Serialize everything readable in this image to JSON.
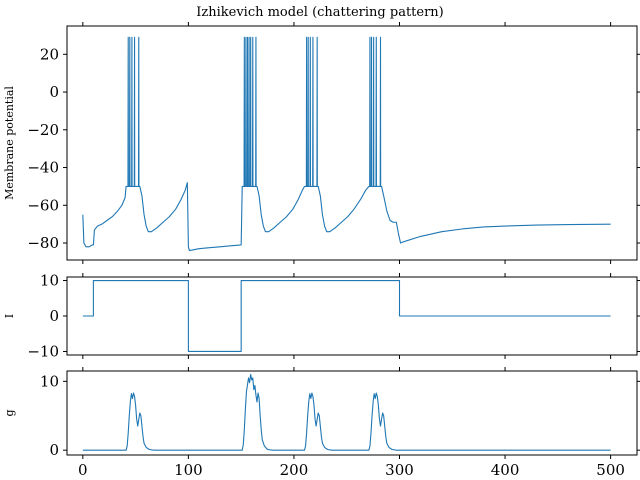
{
  "chart_data": {
    "type": "line",
    "title": "Izhikevich model (chattering pattern)",
    "x_ticks": [
      0,
      100,
      200,
      300,
      400,
      500
    ],
    "xlim": [
      -15,
      525
    ],
    "color": "#1f77b4",
    "panels": [
      {
        "id": "membrane",
        "ylabel": "Membrane potential",
        "ylim": [
          -89,
          35
        ],
        "y_ticks": [
          20,
          0,
          -20,
          -40,
          -60,
          -80
        ],
        "y_tick_labels": [
          "20",
          "0",
          "−20",
          "−40",
          "−60",
          "−80"
        ],
        "bursts": [
          {
            "start": 41,
            "spikes": [
              43,
              44.5,
              46.5,
              49,
              53
            ]
          },
          {
            "start": 151,
            "spikes": [
              153,
              154.5,
              156,
              157.5,
              159,
              161,
              164
            ]
          },
          {
            "start": 210,
            "spikes": [
              212,
              213.5,
              215.5,
              218,
              222
            ]
          },
          {
            "start": 271,
            "spikes": [
              272,
              273.5,
              275.5,
              278,
              282
            ]
          }
        ],
        "spike_peak": 29,
        "spike_trough": -50,
        "points": [
          [
            0,
            -65
          ],
          [
            1,
            -80
          ],
          [
            3,
            -82
          ],
          [
            6,
            -82
          ],
          [
            9,
            -81
          ],
          [
            10,
            -81
          ],
          [
            11,
            -73
          ],
          [
            14,
            -71
          ],
          [
            18,
            -70
          ],
          [
            23,
            -68
          ],
          [
            28,
            -66
          ],
          [
            33,
            -63
          ],
          [
            37,
            -60
          ],
          [
            40,
            -56
          ],
          [
            41,
            -50
          ],
          [
            54,
            -50
          ],
          [
            56,
            -55
          ],
          [
            58,
            -65
          ],
          [
            60,
            -71
          ],
          [
            62,
            -74
          ],
          [
            65,
            -74
          ],
          [
            70,
            -72
          ],
          [
            76,
            -69
          ],
          [
            82,
            -66
          ],
          [
            88,
            -62
          ],
          [
            93,
            -57
          ],
          [
            97,
            -52
          ],
          [
            99,
            -48
          ],
          [
            100,
            -82
          ],
          [
            101,
            -84
          ],
          [
            110,
            -83
          ],
          [
            120,
            -82.5
          ],
          [
            130,
            -82
          ],
          [
            140,
            -81.5
          ],
          [
            150,
            -81
          ],
          [
            151,
            -50
          ],
          [
            165,
            -50
          ],
          [
            167,
            -55
          ],
          [
            169,
            -65
          ],
          [
            171,
            -71
          ],
          [
            173,
            -74
          ],
          [
            176,
            -74
          ],
          [
            181,
            -72
          ],
          [
            187,
            -69
          ],
          [
            193,
            -66
          ],
          [
            199,
            -62
          ],
          [
            204,
            -57
          ],
          [
            208,
            -52
          ],
          [
            210,
            -50
          ],
          [
            223,
            -50
          ],
          [
            225,
            -55
          ],
          [
            227,
            -65
          ],
          [
            229,
            -71
          ],
          [
            231,
            -74
          ],
          [
            234,
            -74
          ],
          [
            239,
            -72
          ],
          [
            245,
            -69
          ],
          [
            251,
            -66
          ],
          [
            257,
            -62
          ],
          [
            263,
            -57
          ],
          [
            268,
            -52
          ],
          [
            271,
            -50
          ],
          [
            283,
            -50
          ],
          [
            285,
            -55
          ],
          [
            288,
            -63
          ],
          [
            291,
            -68
          ],
          [
            294,
            -69
          ],
          [
            297,
            -69
          ],
          [
            299,
            -75
          ],
          [
            301,
            -80
          ],
          [
            303,
            -79.5
          ],
          [
            320,
            -76.5
          ],
          [
            340,
            -74
          ],
          [
            360,
            -72.5
          ],
          [
            380,
            -71.5
          ],
          [
            400,
            -71
          ],
          [
            430,
            -70.5
          ],
          [
            460,
            -70.2
          ],
          [
            500,
            -70
          ]
        ]
      },
      {
        "id": "current",
        "ylabel": "I",
        "ylim": [
          -11,
          11
        ],
        "y_ticks": [
          10,
          0,
          -10
        ],
        "y_tick_labels": [
          "10",
          "0",
          "−10"
        ],
        "points": [
          [
            0,
            0
          ],
          [
            10,
            0
          ],
          [
            10,
            10
          ],
          [
            100,
            10
          ],
          [
            100,
            -10
          ],
          [
            150,
            -10
          ],
          [
            150,
            10
          ],
          [
            300,
            10
          ],
          [
            300,
            0
          ],
          [
            500,
            0
          ]
        ]
      },
      {
        "id": "conductance",
        "ylabel": "g",
        "ylim": [
          -0.7,
          11.5
        ],
        "y_ticks": [
          10,
          0
        ],
        "y_tick_labels": [
          "10",
          "0"
        ],
        "points": [
          [
            0,
            0
          ],
          [
            41,
            0
          ],
          [
            42,
            0.6
          ],
          [
            43,
            2.5
          ],
          [
            44,
            5
          ],
          [
            45,
            7
          ],
          [
            46,
            8.2
          ],
          [
            47,
            7.5
          ],
          [
            48,
            8.3
          ],
          [
            49,
            7.8
          ],
          [
            50,
            6.5
          ],
          [
            51,
            4.5
          ],
          [
            52,
            3.5
          ],
          [
            53,
            4.5
          ],
          [
            54,
            5.4
          ],
          [
            55,
            5
          ],
          [
            56,
            3.5
          ],
          [
            57,
            2
          ],
          [
            58,
            1
          ],
          [
            60,
            0.4
          ],
          [
            63,
            0.1
          ],
          [
            67,
            0
          ],
          [
            151,
            0
          ],
          [
            152,
            0.8
          ],
          [
            153,
            3
          ],
          [
            154,
            6
          ],
          [
            155,
            8.5
          ],
          [
            156,
            9.5
          ],
          [
            157,
            10.5
          ],
          [
            158,
            9.8
          ],
          [
            159,
            11
          ],
          [
            160,
            10.2
          ],
          [
            161,
            10.5
          ],
          [
            162,
            8.8
          ],
          [
            163,
            9.4
          ],
          [
            164,
            8
          ],
          [
            165,
            7
          ],
          [
            166,
            8.3
          ],
          [
            167,
            7.5
          ],
          [
            168,
            5
          ],
          [
            169,
            3
          ],
          [
            170,
            1.5
          ],
          [
            172,
            0.6
          ],
          [
            175,
            0.1
          ],
          [
            180,
            0
          ],
          [
            210,
            0
          ],
          [
            211,
            0.6
          ],
          [
            212,
            2.5
          ],
          [
            213,
            5
          ],
          [
            214,
            7
          ],
          [
            215,
            8.2
          ],
          [
            216,
            7.5
          ],
          [
            217,
            8.3
          ],
          [
            218,
            7.8
          ],
          [
            219,
            6.5
          ],
          [
            220,
            4.5
          ],
          [
            221,
            3.5
          ],
          [
            222,
            4.5
          ],
          [
            223,
            5.4
          ],
          [
            224,
            5
          ],
          [
            225,
            3.5
          ],
          [
            226,
            2
          ],
          [
            227,
            1
          ],
          [
            229,
            0.4
          ],
          [
            232,
            0.1
          ],
          [
            236,
            0
          ],
          [
            271,
            0
          ],
          [
            272,
            0.6
          ],
          [
            273,
            2.5
          ],
          [
            274,
            5
          ],
          [
            275,
            7
          ],
          [
            276,
            8.2
          ],
          [
            277,
            7.5
          ],
          [
            278,
            8.3
          ],
          [
            279,
            7.8
          ],
          [
            280,
            6.5
          ],
          [
            281,
            4.5
          ],
          [
            282,
            3.5
          ],
          [
            283,
            4.5
          ],
          [
            284,
            5.4
          ],
          [
            285,
            5
          ],
          [
            286,
            3.5
          ],
          [
            287,
            2
          ],
          [
            288,
            1
          ],
          [
            290,
            0.4
          ],
          [
            293,
            0.1
          ],
          [
            297,
            0
          ],
          [
            500,
            0
          ]
        ]
      }
    ]
  }
}
